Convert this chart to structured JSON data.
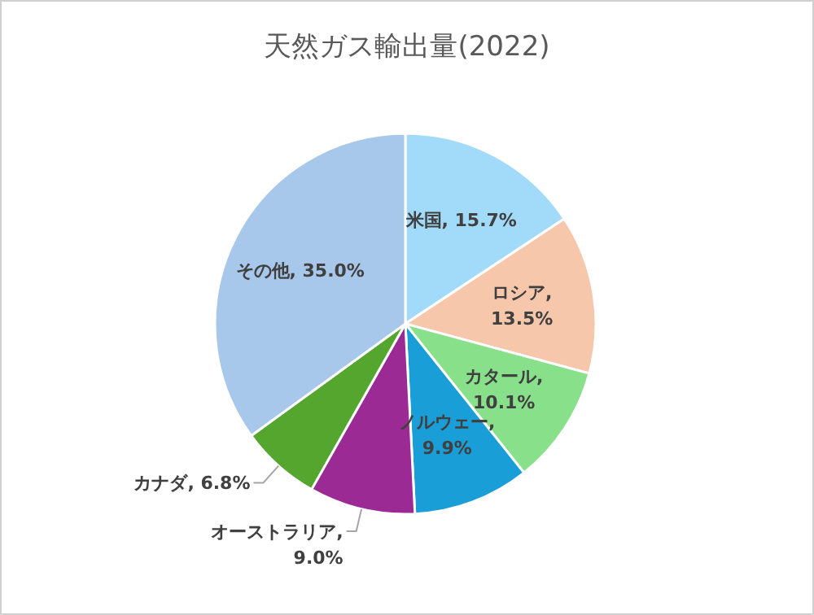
{
  "chart_data": {
    "type": "pie",
    "title": "天然ガス輸出量(2022)",
    "categories": [
      "米国",
      "ロシア",
      "カタール",
      "ノルウェー",
      "オーストラリア",
      "カナダ",
      "その他"
    ],
    "values": [
      15.7,
      13.5,
      10.1,
      9.9,
      9.0,
      6.8,
      35.0
    ],
    "value_labels": [
      ", 15.7%",
      ", 13.5%",
      ", 10.1%",
      ", 9.9%",
      ", 9.0%",
      ", 6.8%",
      ", 35.0%"
    ],
    "colors": [
      "#a1dbf9",
      "#f6c7ab",
      "#89e08b",
      "#1a9ed8",
      "#9b2a94",
      "#55a62f",
      "#a8c8eb"
    ]
  }
}
